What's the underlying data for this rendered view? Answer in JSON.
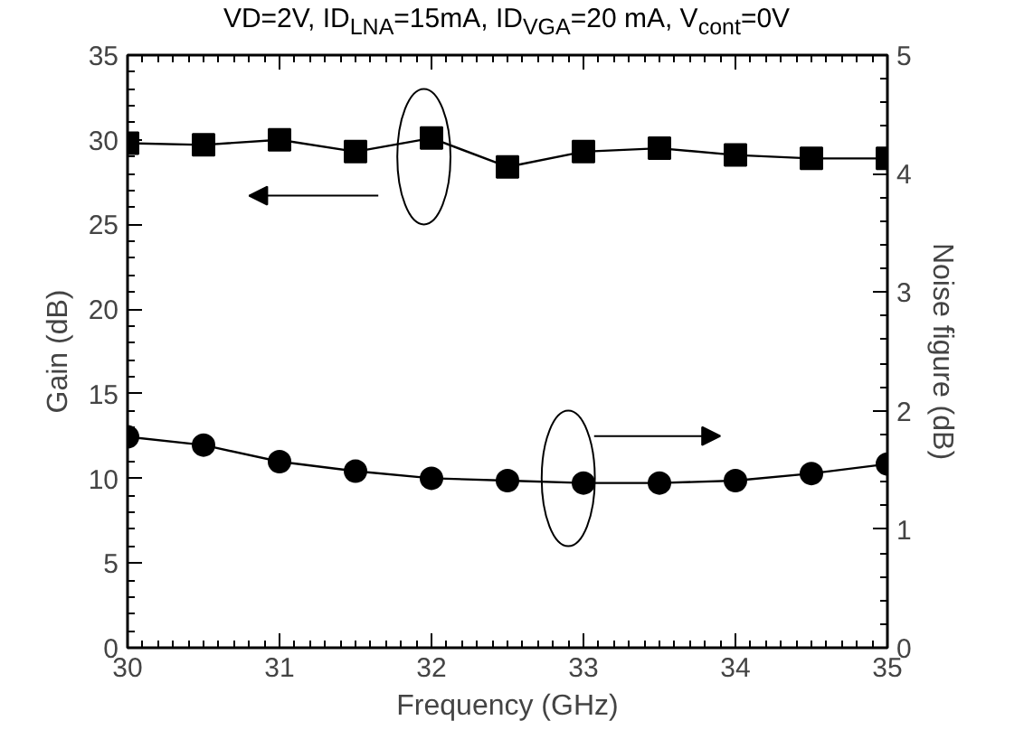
{
  "chart_data": {
    "type": "line",
    "title": "VD=2V, ID$_{LNA}$=15mA, ID$_{VGA}$=20 mA, V$_{cont}$=0V",
    "xlabel": "Frequency (GHz)",
    "ylabel": "Gain (dB)",
    "y2label": "Noise figure (dB)",
    "x": [
      30,
      30.5,
      31,
      31.5,
      32,
      32.5,
      33,
      33.5,
      34,
      34.5,
      35
    ],
    "series": [
      {
        "color": "#000000",
        "marker": "square",
        "values": [
          29.8,
          29.7,
          30.0,
          29.3,
          30.1,
          28.4,
          29.3,
          29.5,
          29.1,
          28.9,
          28.9
        ]
      },
      {
        "color": "#000000",
        "marker": "circle",
        "axis": "y2",
        "values": [
          1.78,
          1.71,
          1.57,
          1.49,
          1.43,
          1.41,
          1.39,
          1.39,
          1.41,
          1.47,
          1.55
        ]
      }
    ],
    "xlim": [
      30,
      35
    ],
    "xticks": [
      30,
      31,
      32,
      33,
      34,
      35
    ],
    "ylim": [
      0,
      35
    ],
    "yticks": [
      0,
      5,
      10,
      15,
      20,
      25,
      30,
      35
    ],
    "y2lim": [
      0,
      5
    ],
    "y2ticks": [
      0,
      1,
      2,
      3,
      4,
      5
    ],
    "grid": false,
    "line_style": "solid"
  }
}
